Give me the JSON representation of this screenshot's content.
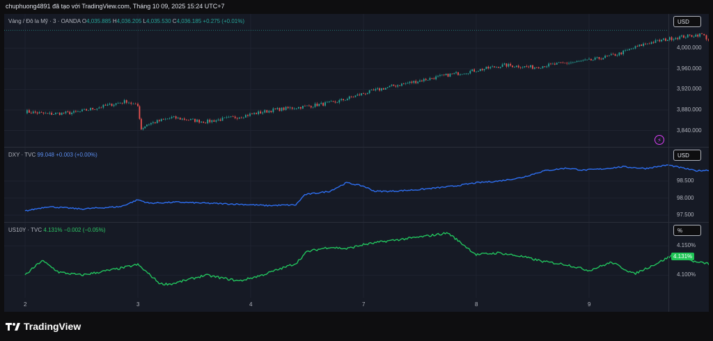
{
  "header": {
    "text": "chuphuong4891 đã tạo với TradingView.com, Tháng 10 09, 2025 15:24 UTC+7"
  },
  "brand": {
    "name": "TradingView"
  },
  "colors": {
    "up": "#26a69a",
    "down": "#ef5350",
    "dxy": "#2e6ff2",
    "us10y": "#22c55e",
    "badge": "#1fc455"
  },
  "time_axis": {
    "labels": [
      "2",
      "3",
      "4",
      "7",
      "8",
      "9"
    ]
  },
  "chart_data": [
    {
      "type": "candlestick",
      "legend": {
        "symbol": "Vàng / Đô la Mỹ · 3 · OANDA",
        "o_label": "O",
        "o": "4,035.885",
        "h_label": "H",
        "h": "4,036.205",
        "l_label": "L",
        "l": "4,035.530",
        "c_label": "C",
        "c": "4,036.185",
        "change": "+0.275 (+0.01%)"
      },
      "unit": "USD",
      "ylim": [
        3815,
        4045
      ],
      "y_ticks": [
        "4,000.000",
        "3,960.000",
        "3,920.000",
        "3,880.000",
        "3,840.000"
      ],
      "y_tick_values": [
        4000,
        3960,
        3920,
        3880,
        3840
      ],
      "x": [
        0,
        0.2,
        0.45,
        0.9,
        1.0,
        1.03,
        1.08,
        1.3,
        1.6,
        1.9,
        2.2,
        2.5,
        2.75,
        3.0,
        3.25,
        3.5,
        3.75,
        4.0,
        4.25,
        4.5,
        4.75,
        5.0,
        5.25,
        5.5,
        5.75,
        6.0,
        6.1,
        6.25,
        6.5
      ],
      "close": [
        3877,
        3872,
        3875,
        3897,
        3887,
        3843,
        3852,
        3865,
        3857,
        3867,
        3880,
        3887,
        3895,
        3912,
        3926,
        3937,
        3948,
        3957,
        3967,
        3963,
        3970,
        3976,
        3988,
        4009,
        4020,
        4027,
        4009,
        4012,
        4035
      ]
    },
    {
      "type": "line",
      "legend": {
        "symbol": "DXY · TVC",
        "value": "99.048",
        "change": "+0.003 (+0.00%)"
      },
      "unit": "USD",
      "ylim": [
        97.4,
        99.32
      ],
      "y_ticks": [
        "98.500",
        "98.000",
        "97.500"
      ],
      "y_tick_values": [
        98.5,
        98.0,
        97.5
      ],
      "x": [
        0,
        0.2,
        0.5,
        0.85,
        1.0,
        1.1,
        1.35,
        1.6,
        1.9,
        2.15,
        2.4,
        2.48,
        2.7,
        2.85,
        3.0,
        3.1,
        3.25,
        3.5,
        3.8,
        4.0,
        4.2,
        4.4,
        4.6,
        4.8,
        4.95,
        5.1,
        5.3,
        5.5,
        5.7,
        5.95,
        6.05,
        6.25,
        6.5
      ],
      "values": [
        97.62,
        97.75,
        97.68,
        97.75,
        97.95,
        97.85,
        97.88,
        97.85,
        97.82,
        97.78,
        97.8,
        98.1,
        98.2,
        98.45,
        98.35,
        98.2,
        98.2,
        98.25,
        98.35,
        98.45,
        98.5,
        98.6,
        98.8,
        98.88,
        98.82,
        98.85,
        98.92,
        98.87,
        98.97,
        98.8,
        98.82,
        98.82,
        99.05
      ]
    },
    {
      "type": "line",
      "legend": {
        "symbol": "US10Y · TVC",
        "value": "4.131%",
        "change": "−0.002 (−0.05%)"
      },
      "unit": "%",
      "last_value": "4.131%",
      "ylim": [
        4.066,
        4.18
      ],
      "y_ticks": [
        "4.150%",
        "4.100%"
      ],
      "y_tick_values": [
        4.15,
        4.1
      ],
      "x": [
        0,
        0.15,
        0.3,
        0.5,
        0.8,
        1.0,
        1.2,
        1.3,
        1.6,
        1.9,
        2.1,
        2.4,
        2.5,
        2.7,
        2.85,
        3.0,
        3.2,
        3.5,
        3.75,
        4.0,
        4.2,
        4.4,
        4.6,
        4.8,
        5.0,
        5.2,
        5.4,
        5.6,
        5.75,
        5.95,
        6.05,
        6.2,
        6.35,
        6.5
      ],
      "values": [
        4.1,
        4.125,
        4.105,
        4.1,
        4.11,
        4.118,
        4.085,
        4.085,
        4.1,
        4.09,
        4.1,
        4.12,
        4.14,
        4.148,
        4.145,
        4.152,
        4.158,
        4.165,
        4.172,
        4.135,
        4.138,
        4.132,
        4.123,
        4.118,
        4.108,
        4.122,
        4.102,
        4.12,
        4.135,
        4.122,
        4.12,
        4.112,
        4.128,
        4.131
      ]
    }
  ]
}
